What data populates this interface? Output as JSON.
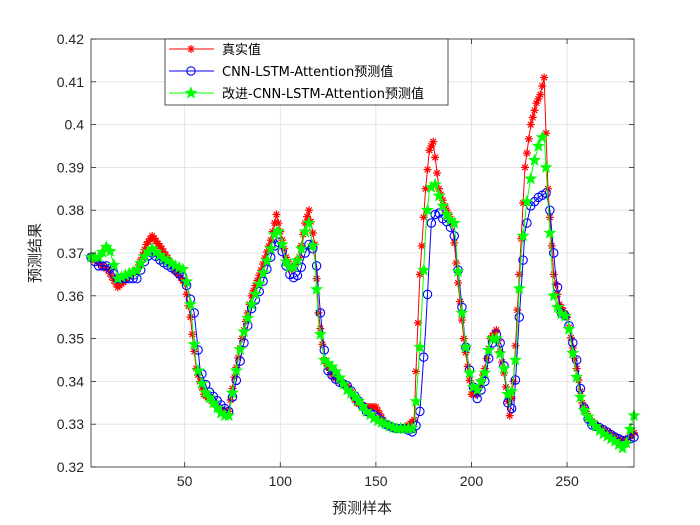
{
  "chart_data": {
    "type": "line",
    "title": "",
    "xlabel": "预测样本",
    "ylabel": "预测结果",
    "xlim": [
      1,
      285
    ],
    "ylim": [
      0.32,
      0.42
    ],
    "xticks": [
      50,
      100,
      150,
      200,
      250
    ],
    "yticks": [
      0.32,
      0.33,
      0.34,
      0.35,
      0.36,
      0.37,
      0.38,
      0.39,
      0.4,
      0.41,
      0.42
    ],
    "ytick_labels": [
      "0.32",
      "0.33",
      "0.34",
      "0.35",
      "0.36",
      "0.37",
      "0.38",
      "0.39",
      "0.4",
      "0.41",
      "0.42"
    ],
    "grid": true,
    "legend_position": "top-left",
    "series": [
      {
        "name": "真实值",
        "color": "#ff0000",
        "marker": "asterisk",
        "keypoints": [
          [
            1,
            0.369
          ],
          [
            10,
            0.366
          ],
          [
            15,
            0.362
          ],
          [
            20,
            0.364
          ],
          [
            25,
            0.366
          ],
          [
            30,
            0.372
          ],
          [
            33,
            0.374
          ],
          [
            38,
            0.371
          ],
          [
            45,
            0.366
          ],
          [
            50,
            0.363
          ],
          [
            53,
            0.355
          ],
          [
            56,
            0.343
          ],
          [
            60,
            0.337
          ],
          [
            65,
            0.335
          ],
          [
            70,
            0.333
          ],
          [
            73,
            0.333
          ],
          [
            76,
            0.341
          ],
          [
            80,
            0.35
          ],
          [
            85,
            0.36
          ],
          [
            90,
            0.366
          ],
          [
            95,
            0.373
          ],
          [
            98,
            0.379
          ],
          [
            100,
            0.375
          ],
          [
            103,
            0.369
          ],
          [
            106,
            0.366
          ],
          [
            110,
            0.369
          ],
          [
            113,
            0.377
          ],
          [
            115,
            0.38
          ],
          [
            118,
            0.372
          ],
          [
            120,
            0.356
          ],
          [
            123,
            0.345
          ],
          [
            128,
            0.341
          ],
          [
            135,
            0.339
          ],
          [
            140,
            0.335
          ],
          [
            145,
            0.334
          ],
          [
            150,
            0.334
          ],
          [
            155,
            0.33
          ],
          [
            160,
            0.329
          ],
          [
            165,
            0.329
          ],
          [
            170,
            0.331
          ],
          [
            173,
            0.365
          ],
          [
            176,
            0.385
          ],
          [
            178,
            0.394
          ],
          [
            180,
            0.396
          ],
          [
            183,
            0.385
          ],
          [
            186,
            0.381
          ],
          [
            190,
            0.377
          ],
          [
            193,
            0.363
          ],
          [
            196,
            0.35
          ],
          [
            200,
            0.337
          ],
          [
            203,
            0.337
          ],
          [
            207,
            0.343
          ],
          [
            210,
            0.35
          ],
          [
            213,
            0.352
          ],
          [
            217,
            0.342
          ],
          [
            220,
            0.332
          ],
          [
            222,
            0.34
          ],
          [
            225,
            0.365
          ],
          [
            228,
            0.39
          ],
          [
            231,
            0.4
          ],
          [
            234,
            0.405
          ],
          [
            236,
            0.407
          ],
          [
            238,
            0.411
          ],
          [
            240,
            0.385
          ],
          [
            243,
            0.365
          ],
          [
            246,
            0.358
          ],
          [
            250,
            0.355
          ],
          [
            255,
            0.343
          ],
          [
            258,
            0.335
          ],
          [
            262,
            0.331
          ],
          [
            268,
            0.329
          ],
          [
            275,
            0.327
          ],
          [
            280,
            0.326
          ],
          [
            285,
            0.328
          ]
        ]
      },
      {
        "name": "CNN-LSTM-Attention预测值",
        "color": "#0000ff",
        "marker": "circle",
        "keypoints": [
          [
            1,
            0.369
          ],
          [
            5,
            0.367
          ],
          [
            10,
            0.367
          ],
          [
            15,
            0.364
          ],
          [
            20,
            0.364
          ],
          [
            25,
            0.364
          ],
          [
            30,
            0.369
          ],
          [
            33,
            0.37
          ],
          [
            38,
            0.368
          ],
          [
            45,
            0.366
          ],
          [
            50,
            0.364
          ],
          [
            55,
            0.356
          ],
          [
            58,
            0.343
          ],
          [
            62,
            0.338
          ],
          [
            66,
            0.336
          ],
          [
            70,
            0.334
          ],
          [
            73,
            0.333
          ],
          [
            76,
            0.338
          ],
          [
            80,
            0.347
          ],
          [
            85,
            0.357
          ],
          [
            90,
            0.362
          ],
          [
            95,
            0.369
          ],
          [
            98,
            0.373
          ],
          [
            100,
            0.372
          ],
          [
            103,
            0.367
          ],
          [
            106,
            0.364
          ],
          [
            110,
            0.365
          ],
          [
            113,
            0.37
          ],
          [
            116,
            0.373
          ],
          [
            119,
            0.367
          ],
          [
            121,
            0.356
          ],
          [
            124,
            0.343
          ],
          [
            130,
            0.34
          ],
          [
            135,
            0.339
          ],
          [
            140,
            0.336
          ],
          [
            145,
            0.333
          ],
          [
            150,
            0.332
          ],
          [
            155,
            0.33
          ],
          [
            160,
            0.329
          ],
          [
            165,
            0.329
          ],
          [
            170,
            0.328
          ],
          [
            173,
            0.333
          ],
          [
            176,
            0.352
          ],
          [
            179,
            0.377
          ],
          [
            182,
            0.38
          ],
          [
            185,
            0.378
          ],
          [
            188,
            0.377
          ],
          [
            191,
            0.374
          ],
          [
            194,
            0.362
          ],
          [
            197,
            0.348
          ],
          [
            200,
            0.34
          ],
          [
            203,
            0.336
          ],
          [
            207,
            0.34
          ],
          [
            210,
            0.348
          ],
          [
            213,
            0.351
          ],
          [
            216,
            0.348
          ],
          [
            219,
            0.335
          ],
          [
            222,
            0.333
          ],
          [
            225,
            0.355
          ],
          [
            228,
            0.375
          ],
          [
            231,
            0.381
          ],
          [
            235,
            0.383
          ],
          [
            239,
            0.384
          ],
          [
            241,
            0.38
          ],
          [
            244,
            0.365
          ],
          [
            247,
            0.356
          ],
          [
            250,
            0.355
          ],
          [
            255,
            0.345
          ],
          [
            258,
            0.335
          ],
          [
            262,
            0.33
          ],
          [
            268,
            0.329
          ],
          [
            275,
            0.327
          ],
          [
            280,
            0.326
          ],
          [
            285,
            0.327
          ]
        ]
      },
      {
        "name": "改进-CNN-LSTM-Attention预测值",
        "color": "#00ff00",
        "marker": "star",
        "keypoints": [
          [
            1,
            0.369
          ],
          [
            5,
            0.369
          ],
          [
            10,
            0.372
          ],
          [
            15,
            0.364
          ],
          [
            20,
            0.365
          ],
          [
            25,
            0.366
          ],
          [
            30,
            0.37
          ],
          [
            33,
            0.371
          ],
          [
            38,
            0.369
          ],
          [
            45,
            0.367
          ],
          [
            50,
            0.366
          ],
          [
            53,
            0.358
          ],
          [
            56,
            0.344
          ],
          [
            60,
            0.338
          ],
          [
            65,
            0.335
          ],
          [
            70,
            0.332
          ],
          [
            73,
            0.332
          ],
          [
            76,
            0.34
          ],
          [
            80,
            0.35
          ],
          [
            85,
            0.358
          ],
          [
            90,
            0.364
          ],
          [
            95,
            0.371
          ],
          [
            98,
            0.376
          ],
          [
            100,
            0.374
          ],
          [
            103,
            0.368
          ],
          [
            106,
            0.366
          ],
          [
            110,
            0.369
          ],
          [
            113,
            0.375
          ],
          [
            115,
            0.377
          ],
          [
            118,
            0.369
          ],
          [
            120,
            0.354
          ],
          [
            123,
            0.345
          ],
          [
            128,
            0.343
          ],
          [
            135,
            0.338
          ],
          [
            140,
            0.336
          ],
          [
            145,
            0.333
          ],
          [
            150,
            0.331
          ],
          [
            155,
            0.33
          ],
          [
            160,
            0.329
          ],
          [
            165,
            0.329
          ],
          [
            170,
            0.329
          ],
          [
            173,
            0.348
          ],
          [
            176,
            0.375
          ],
          [
            178,
            0.385
          ],
          [
            181,
            0.386
          ],
          [
            184,
            0.382
          ],
          [
            188,
            0.378
          ],
          [
            191,
            0.377
          ],
          [
            194,
            0.36
          ],
          [
            197,
            0.348
          ],
          [
            200,
            0.339
          ],
          [
            203,
            0.338
          ],
          [
            207,
            0.342
          ],
          [
            210,
            0.35
          ],
          [
            213,
            0.35
          ],
          [
            217,
            0.343
          ],
          [
            220,
            0.334
          ],
          [
            223,
            0.345
          ],
          [
            226,
            0.37
          ],
          [
            229,
            0.382
          ],
          [
            232,
            0.39
          ],
          [
            235,
            0.395
          ],
          [
            238,
            0.398
          ],
          [
            240,
            0.382
          ],
          [
            243,
            0.36
          ],
          [
            246,
            0.356
          ],
          [
            250,
            0.355
          ],
          [
            255,
            0.341
          ],
          [
            258,
            0.334
          ],
          [
            262,
            0.331
          ],
          [
            268,
            0.328
          ],
          [
            275,
            0.326
          ],
          [
            280,
            0.324
          ],
          [
            285,
            0.332
          ]
        ]
      }
    ]
  }
}
